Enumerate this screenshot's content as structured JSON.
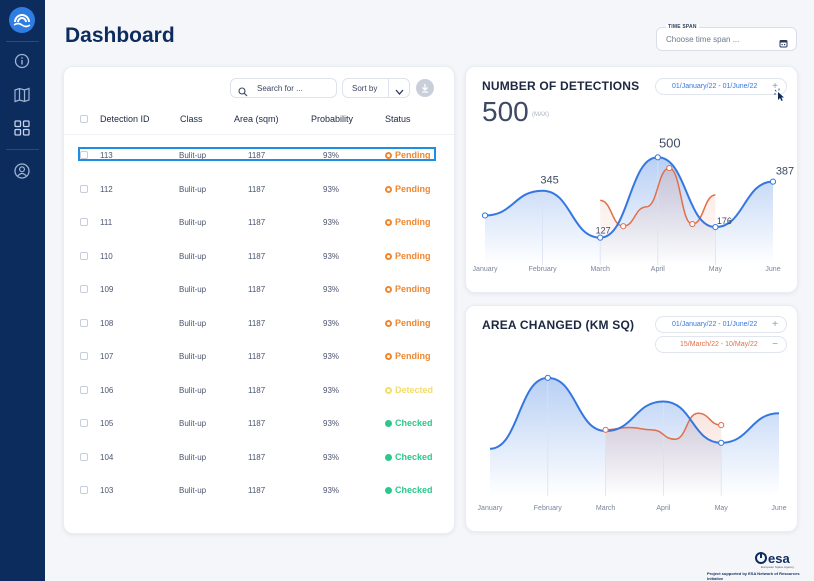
{
  "page": {
    "title": "Dashboard"
  },
  "sidebar": {
    "items": [
      {
        "icon": "info-icon"
      },
      {
        "icon": "map-icon"
      },
      {
        "icon": "grid-icon"
      },
      {
        "icon": "user-icon"
      }
    ]
  },
  "time_span": {
    "label": "TIME SPAN",
    "placeholder": "Choose time span ..."
  },
  "table": {
    "search_placeholder": "Search for ...",
    "sort_label": "Sort by",
    "columns": [
      "Detection ID",
      "Class",
      "Area (sqm)",
      "Probability",
      "Status"
    ],
    "rows": [
      {
        "id": "113",
        "class": "Bulit-up",
        "area": "1187",
        "probability": "93%",
        "status": "Pending"
      },
      {
        "id": "112",
        "class": "Bulit-up",
        "area": "1187",
        "probability": "93%",
        "status": "Pending"
      },
      {
        "id": "111",
        "class": "Bulit-up",
        "area": "1187",
        "probability": "93%",
        "status": "Pending"
      },
      {
        "id": "110",
        "class": "Bulit-up",
        "area": "1187",
        "probability": "93%",
        "status": "Pending"
      },
      {
        "id": "109",
        "class": "Bulit-up",
        "area": "1187",
        "probability": "93%",
        "status": "Pending"
      },
      {
        "id": "108",
        "class": "Bulit-up",
        "area": "1187",
        "probability": "93%",
        "status": "Pending"
      },
      {
        "id": "107",
        "class": "Bulit-up",
        "area": "1187",
        "probability": "93%",
        "status": "Pending"
      },
      {
        "id": "106",
        "class": "Bulit-up",
        "area": "1187",
        "probability": "93%",
        "status": "Detected"
      },
      {
        "id": "105",
        "class": "Bulit-up",
        "area": "1187",
        "probability": "93%",
        "status": "Checked"
      },
      {
        "id": "104",
        "class": "Bulit-up",
        "area": "1187",
        "probability": "93%",
        "status": "Checked"
      },
      {
        "id": "103",
        "class": "Bulit-up",
        "area": "1187",
        "probability": "93%",
        "status": "Checked"
      }
    ],
    "status_colors": {
      "Pending": "#f0872f",
      "Detected": "#f2dc6a",
      "Checked": "#2bc88a"
    }
  },
  "detections": {
    "title": "NUMBER OF DETECTIONS",
    "value": "500",
    "max_label": "(MAX)",
    "range1": "01/January/22 - 01/June/22",
    "range1_btn": "+"
  },
  "area_changed": {
    "title": "AREA CHANGED (KM SQ)",
    "range1": "01/January/22 - 01/June/22",
    "range1_btn": "+",
    "range2": "15/March/22 - 10/May/22",
    "range2_btn": "−"
  },
  "colors": {
    "blue": "#3577e0",
    "orange": "#e06f4b",
    "navy": "#0d2c5e"
  },
  "footer": {
    "esa": "esa",
    "esa_sub": "European Space Agency",
    "note": "Project supported by ESA Network of Resources Initiative"
  },
  "chart_data": [
    {
      "type": "area",
      "title": "NUMBER OF DETECTIONS",
      "x": [
        "January",
        "February",
        "March",
        "April",
        "May",
        "June"
      ],
      "series": [
        {
          "values": [
            230,
            345,
            127,
            500,
            176,
            387
          ]
        },
        {
          "x_range": [
            "March",
            "May"
          ],
          "values": [
            300,
            180,
            270,
            450,
            190,
            325
          ]
        }
      ],
      "data_labels": [
        "345",
        "127",
        "500",
        "176",
        "387"
      ]
    },
    {
      "type": "area",
      "title": "AREA CHANGED (KM SQ)",
      "x": [
        "January",
        "February",
        "March",
        "April",
        "May",
        "June"
      ],
      "series": [
        {
          "values": [
            40,
            100,
            55,
            80,
            45,
            70
          ]
        },
        {
          "x_range": [
            "March",
            "May"
          ],
          "values": [
            56,
            58,
            56,
            48,
            70,
            60
          ]
        }
      ]
    }
  ]
}
